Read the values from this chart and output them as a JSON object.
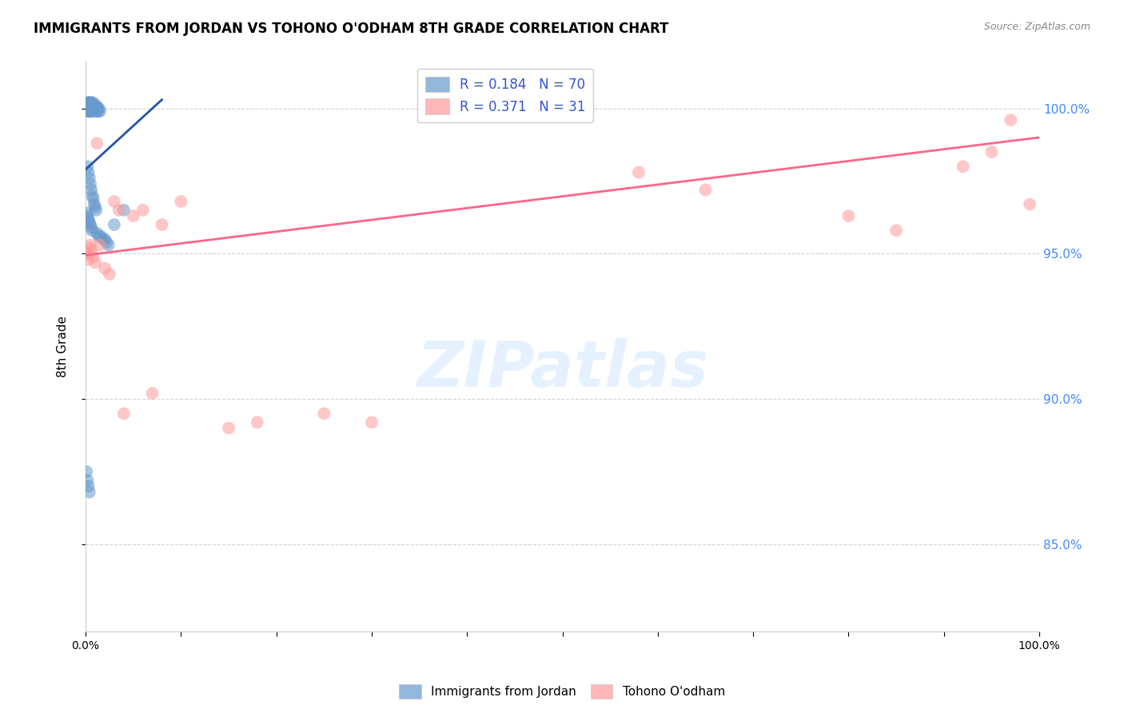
{
  "title": "IMMIGRANTS FROM JORDAN VS TOHONO O'ODHAM 8TH GRADE CORRELATION CHART",
  "source": "Source: ZipAtlas.com",
  "ylabel": "8th Grade",
  "xlim": [
    0.0,
    1.0
  ],
  "ylim": [
    0.82,
    1.016
  ],
  "yticks": [
    0.85,
    0.9,
    0.95,
    1.0
  ],
  "ytick_labels": [
    "85.0%",
    "90.0%",
    "95.0%",
    "100.0%"
  ],
  "xticks": [
    0.0,
    0.1,
    0.2,
    0.3,
    0.4,
    0.5,
    0.6,
    0.7,
    0.8,
    0.9,
    1.0
  ],
  "xtick_labels": [
    "0.0%",
    "",
    "",
    "",
    "",
    "",
    "",
    "",
    "",
    "",
    "100.0%"
  ],
  "blue_color": "#6699CC",
  "pink_color": "#FF9999",
  "blue_line_color": "#2255AA",
  "pink_line_color": "#FF6688",
  "R_blue": 0.184,
  "N_blue": 70,
  "R_pink": 0.371,
  "N_pink": 31,
  "watermark_text": "ZIPatlas",
  "blue_x": [
    0.001,
    0.001,
    0.002,
    0.002,
    0.002,
    0.002,
    0.003,
    0.003,
    0.003,
    0.003,
    0.003,
    0.004,
    0.004,
    0.004,
    0.004,
    0.005,
    0.005,
    0.005,
    0.005,
    0.006,
    0.006,
    0.006,
    0.007,
    0.007,
    0.007,
    0.008,
    0.008,
    0.008,
    0.009,
    0.009,
    0.01,
    0.01,
    0.011,
    0.011,
    0.012,
    0.012,
    0.013,
    0.013,
    0.014,
    0.015,
    0.002,
    0.003,
    0.004,
    0.005,
    0.006,
    0.007,
    0.008,
    0.009,
    0.01,
    0.011,
    0.001,
    0.002,
    0.003,
    0.004,
    0.005,
    0.006,
    0.007,
    0.012,
    0.014,
    0.016,
    0.018,
    0.02,
    0.022,
    0.024,
    0.03,
    0.04,
    0.001,
    0.002,
    0.003,
    0.004
  ],
  "blue_y": [
    1.0,
    1.001,
    0.999,
    1.0,
    1.001,
    1.002,
    0.999,
    1.0,
    1.001,
    1.002,
    1.0,
    0.999,
    1.0,
    1.001,
    1.002,
    0.999,
    1.0,
    1.001,
    1.002,
    1.0,
    1.001,
    1.002,
    0.999,
    1.0,
    1.001,
    1.0,
    1.001,
    1.002,
    1.0,
    1.001,
    0.999,
    1.0,
    1.0,
    1.001,
    0.999,
    1.0,
    0.999,
    1.0,
    1.0,
    0.999,
    0.98,
    0.978,
    0.976,
    0.974,
    0.972,
    0.97,
    0.969,
    0.967,
    0.966,
    0.965,
    0.964,
    0.963,
    0.962,
    0.961,
    0.96,
    0.959,
    0.958,
    0.957,
    0.956,
    0.956,
    0.955,
    0.955,
    0.954,
    0.953,
    0.96,
    0.965,
    0.875,
    0.872,
    0.87,
    0.868
  ],
  "pink_x": [
    0.002,
    0.003,
    0.004,
    0.006,
    0.008,
    0.01,
    0.015,
    0.02,
    0.03,
    0.035,
    0.04,
    0.05,
    0.06,
    0.08,
    0.1,
    0.15,
    0.18,
    0.25,
    0.3,
    0.58,
    0.65,
    0.8,
    0.85,
    0.92,
    0.95,
    0.97,
    0.99,
    0.005,
    0.012,
    0.025,
    0.07
  ],
  "pink_y": [
    0.95,
    0.948,
    0.952,
    0.951,
    0.949,
    0.947,
    0.953,
    0.945,
    0.968,
    0.965,
    0.895,
    0.963,
    0.965,
    0.96,
    0.968,
    0.89,
    0.892,
    0.895,
    0.892,
    0.978,
    0.972,
    0.963,
    0.958,
    0.98,
    0.985,
    0.996,
    0.967,
    0.953,
    0.988,
    0.943,
    0.902
  ],
  "pink_line_x0": 0.0,
  "pink_line_x1": 1.0,
  "pink_line_y0": 0.9495,
  "pink_line_y1": 0.99,
  "blue_line_x0": 0.0,
  "blue_line_x1": 0.08,
  "blue_line_y0": 0.979,
  "blue_line_y1": 1.003
}
